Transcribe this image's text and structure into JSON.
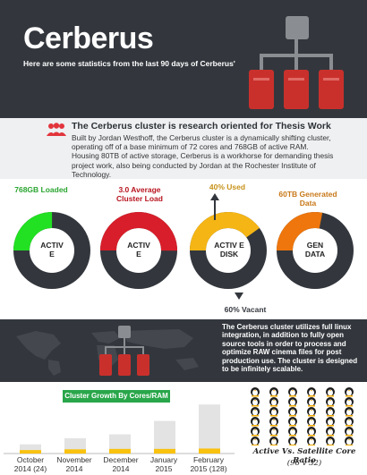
{
  "header": {
    "title": "Cerberus",
    "subtitle": "Here are some statistics from the last 90 days of Cerberus'",
    "icon": "cluster-tree-icon"
  },
  "intro": {
    "icon": "people-icon",
    "heading": "The Cerberus cluster is research oriented for Thesis  Work",
    "body": "Built by Jordan Westhoff, the Cerberus cluster is a dynamically shifting cluster, operating off of a base minimum of 72 cores and 768GB of active RAM. Housing 80TB of active storage, Cerberus is a workhorse for demanding thesis project work, also being conducted by Jordan at the Rochester Institute of Technology."
  },
  "stats": [
    {
      "label": "768GB Loaded",
      "center": "ACTIV E",
      "color": "#22e022",
      "fraction": 0.25,
      "label_color": "#2aa530"
    },
    {
      "label": "3.0 Average Cluster Load",
      "center": "ACTIV E",
      "color": "#d81e2a",
      "fraction": 0.5,
      "label_color": "#b8141e"
    },
    {
      "label_top": "40% Used",
      "label_bottom": "60% Vacant",
      "center": "ACTIV E DISK",
      "color": "#f5b514",
      "fraction": 0.4,
      "label_color": "#c7921a"
    },
    {
      "label": "60TB Generated Data",
      "center": "GEN DATA",
      "color": "#ee760d",
      "fraction": 0.28,
      "label_color": "#c87818"
    }
  ],
  "colors": {
    "dark": "#33373d",
    "ring_dark": "#33373d",
    "red": "#c9302c",
    "green": "#29a64a",
    "yellow": "#f9c20f",
    "bar_grey": "#e3e3e3"
  },
  "mid": {
    "text": "The Cerberus cluster utilizes full linux integration, in addition to fully open source tools in order to process and optimize RAW cinema files for post production use. The cluster is designed to be infinitely scalable."
  },
  "chart_data": {
    "type": "bar",
    "title": "Cluster Growth By Cores/RAM",
    "categories": [
      "October 2014 (24)",
      "November 2014",
      "December 2014",
      "January 2015",
      "February 2015 (128)"
    ],
    "series": [
      {
        "values": [
          24,
          40,
          50,
          85,
          128
        ]
      },
      {
        "values": [
          9,
          11,
          12,
          12,
          13
        ]
      }
    ],
    "ylim": [
      0,
      140
    ]
  },
  "ratio": {
    "title": "Active Vs. Satellite Core Ratio",
    "subtitle": "(96 v 32)",
    "active": 32,
    "satellite": 0,
    "rows": 6,
    "cols": 6,
    "icon": "penguin-icon"
  }
}
